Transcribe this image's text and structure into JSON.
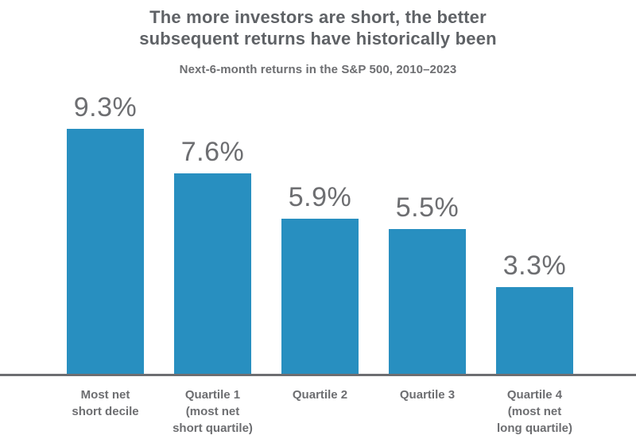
{
  "header": {
    "title": "The more investors are short, the better\nsubsequent returns have historically been",
    "subtitle": "Next-6-month returns in the S&P 500, 2010–2023"
  },
  "colors": {
    "bar": "#288FC0",
    "axis": "#6D6E71",
    "title_text": "#5F6266",
    "label_text": "#6D6E71"
  },
  "chart_data": {
    "type": "bar",
    "title": "The more investors are short, the better subsequent returns have historically been",
    "subtitle": "Next-6-month returns in the S&P 500, 2010–2023",
    "categories": [
      "Most net\nshort decile",
      "Quartile 1\n(most net\nshort quartile)",
      "Quartile 2",
      "Quartile 3",
      "Quartile 4\n(most net\nlong quartile)"
    ],
    "values": [
      9.3,
      7.6,
      5.9,
      5.5,
      3.3
    ],
    "value_labels": [
      "9.3%",
      "7.6%",
      "5.9%",
      "5.5%",
      "3.3%"
    ],
    "xlabel": "",
    "ylabel": "",
    "ylim": [
      0,
      9.3
    ],
    "grid": false,
    "legend": false,
    "bar_color": "#288FC0",
    "axis_color": "#6D6E71",
    "label_color": "#6D6E71"
  }
}
